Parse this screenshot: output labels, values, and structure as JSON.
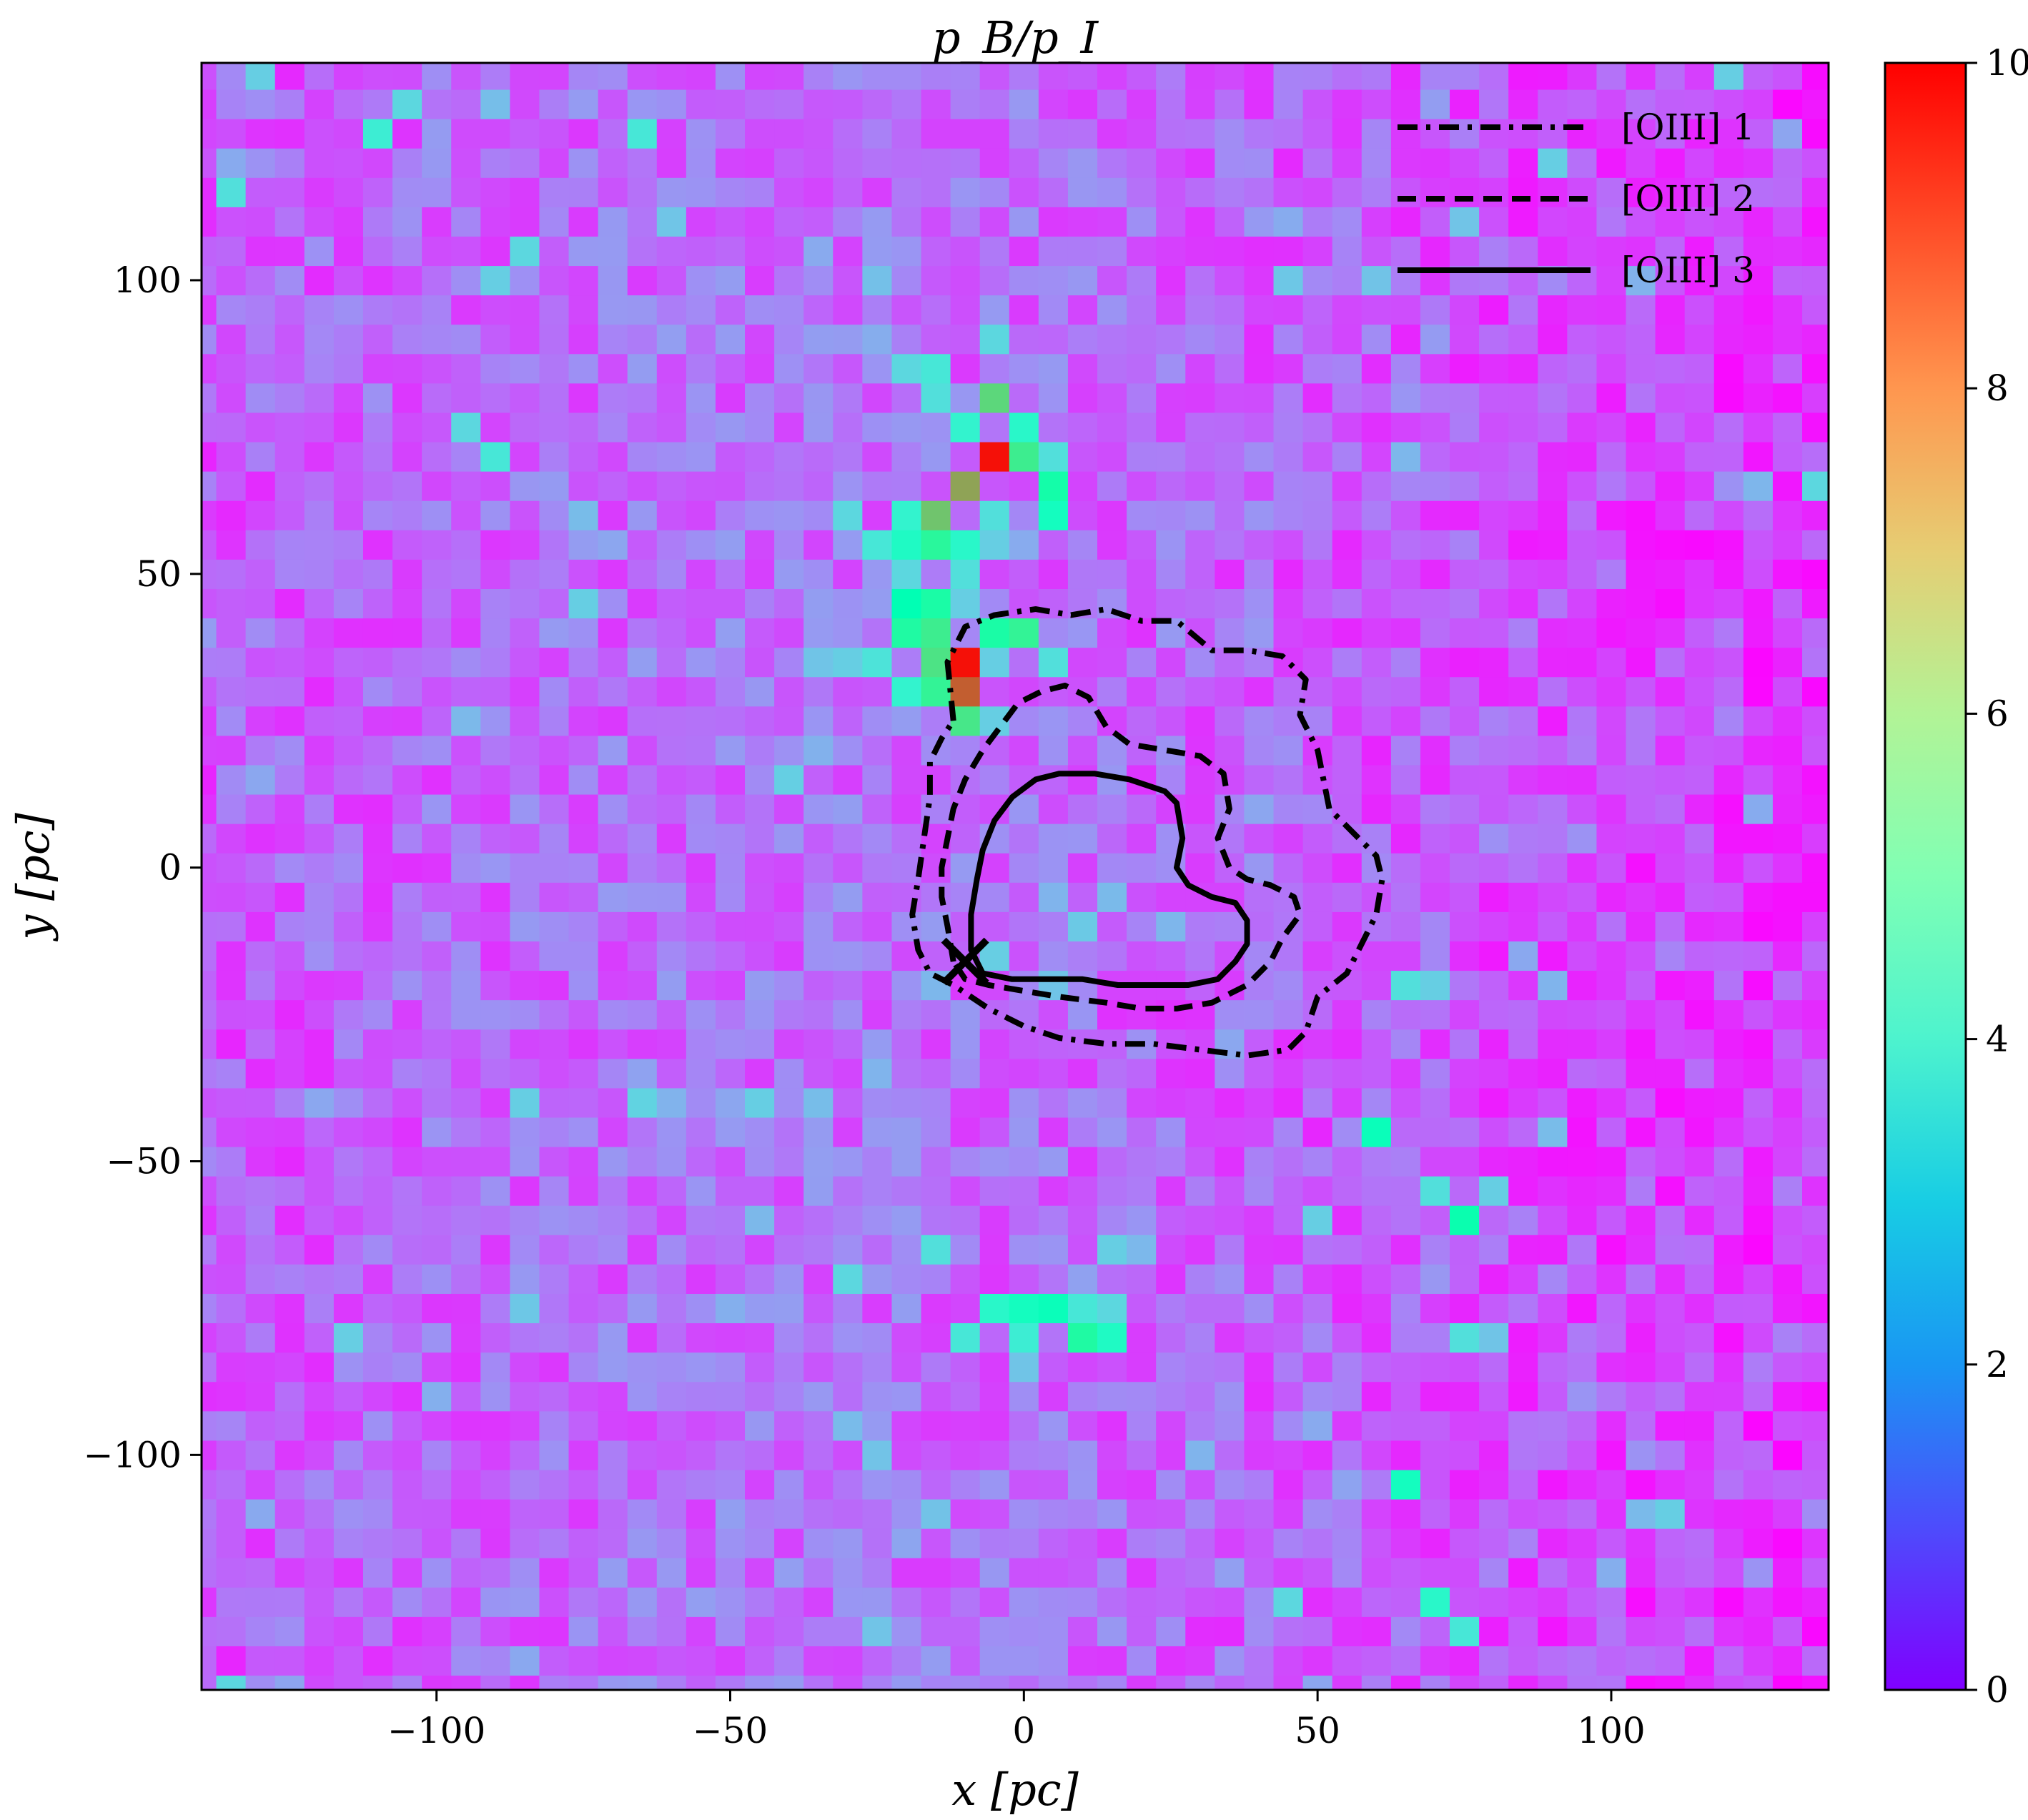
{
  "chart_data": {
    "type": "heatmap",
    "title": "p_B/p_I",
    "xlabel": "x [pc]",
    "ylabel": "y [pc]",
    "xlim": [
      -140,
      137
    ],
    "ylim": [
      -140,
      137
    ],
    "xticks": [
      -100,
      -50,
      0,
      50,
      100
    ],
    "yticks": [
      -100,
      -50,
      0,
      50,
      100
    ],
    "xtick_labels": [
      "−100",
      "−50",
      "0",
      "50",
      "100"
    ],
    "ytick_labels": [
      "−100",
      "−50",
      "0",
      "50",
      "100"
    ],
    "grid": false,
    "colormap": "rainbow",
    "colorbar": {
      "range": [
        0,
        10
      ],
      "ticks": [
        0,
        2,
        4,
        6,
        8,
        10
      ],
      "tick_labels": [
        "0",
        "2",
        "4",
        "6",
        "8",
        "10"
      ]
    },
    "pixel_size_pc": 5,
    "background_value": 1.0,
    "highlight_pixels": [
      {
        "x": -10,
        "y": 35,
        "v": 9.8
      },
      {
        "x": -10,
        "y": 30,
        "v": 8.8
      },
      {
        "x": -10,
        "y": 25,
        "v": 6.4
      },
      {
        "x": -15,
        "y": 30,
        "v": 6.0
      },
      {
        "x": -15,
        "y": 35,
        "v": 6.5
      },
      {
        "x": -15,
        "y": 40,
        "v": 6.2
      },
      {
        "x": -15,
        "y": 45,
        "v": 5.5
      },
      {
        "x": -20,
        "y": 45,
        "v": 5.0
      },
      {
        "x": -20,
        "y": 40,
        "v": 5.6
      },
      {
        "x": -20,
        "y": 30,
        "v": 4.0
      },
      {
        "x": -25,
        "y": 35,
        "v": 3.5
      },
      {
        "x": -5,
        "y": 40,
        "v": 5.5
      },
      {
        "x": -5,
        "y": 35,
        "v": 3.0
      },
      {
        "x": 0,
        "y": 40,
        "v": 6.0
      },
      {
        "x": 5,
        "y": 35,
        "v": 3.4
      },
      {
        "x": -10,
        "y": 45,
        "v": 3.0
      },
      {
        "x": -5,
        "y": 25,
        "v": 3.0
      },
      {
        "x": -5,
        "y": 70,
        "v": 9.8
      },
      {
        "x": -10,
        "y": 65,
        "v": 7.8
      },
      {
        "x": -15,
        "y": 60,
        "v": 7.2
      },
      {
        "x": -5,
        "y": 80,
        "v": 6.8
      },
      {
        "x": 0,
        "y": 70,
        "v": 6.2
      },
      {
        "x": 5,
        "y": 65,
        "v": 5.4
      },
      {
        "x": 5,
        "y": 60,
        "v": 4.6
      },
      {
        "x": -15,
        "y": 55,
        "v": 5.8
      },
      {
        "x": -10,
        "y": 55,
        "v": 4.2
      },
      {
        "x": -20,
        "y": 55,
        "v": 4.4
      },
      {
        "x": -20,
        "y": 60,
        "v": 4.0
      },
      {
        "x": -25,
        "y": 55,
        "v": 3.6
      },
      {
        "x": -10,
        "y": 75,
        "v": 4.0
      },
      {
        "x": 0,
        "y": 75,
        "v": 4.2
      },
      {
        "x": 5,
        "y": 70,
        "v": 3.4
      },
      {
        "x": -15,
        "y": 80,
        "v": 3.4
      },
      {
        "x": -15,
        "y": 85,
        "v": 3.6
      },
      {
        "x": -20,
        "y": 85,
        "v": 3.2
      },
      {
        "x": -5,
        "y": 90,
        "v": 3.2
      },
      {
        "x": -10,
        "y": 50,
        "v": 3.4
      },
      {
        "x": -30,
        "y": 60,
        "v": 3.2
      },
      {
        "x": -5,
        "y": 60,
        "v": 3.4
      },
      {
        "x": -5,
        "y": 55,
        "v": 3.0
      },
      {
        "x": -20,
        "y": 50,
        "v": 3.2
      },
      {
        "x": -30,
        "y": 35,
        "v": 3.0
      },
      {
        "x": -35,
        "y": 35,
        "v": 2.8
      },
      {
        "x": -5,
        "y": -75,
        "v": 4.2
      },
      {
        "x": 0,
        "y": -75,
        "v": 4.6
      },
      {
        "x": 5,
        "y": -75,
        "v": 4.8
      },
      {
        "x": 10,
        "y": -75,
        "v": 3.6
      },
      {
        "x": 10,
        "y": -80,
        "v": 5.6
      },
      {
        "x": 15,
        "y": -80,
        "v": 4.4
      },
      {
        "x": 0,
        "y": -80,
        "v": 3.8
      },
      {
        "x": -10,
        "y": -80,
        "v": 3.6
      },
      {
        "x": 0,
        "y": -85,
        "v": 2.8
      },
      {
        "x": 60,
        "y": -45,
        "v": 4.8
      },
      {
        "x": 75,
        "y": -60,
        "v": 5.2
      },
      {
        "x": 70,
        "y": -55,
        "v": 3.4
      },
      {
        "x": 80,
        "y": -55,
        "v": 3.0
      },
      {
        "x": 65,
        "y": -20,
        "v": 3.4
      },
      {
        "x": 70,
        "y": -20,
        "v": 3.0
      },
      {
        "x": 65,
        "y": -105,
        "v": 4.6
      },
      {
        "x": 75,
        "y": -80,
        "v": 3.4
      },
      {
        "x": 80,
        "y": -80,
        "v": 2.8
      },
      {
        "x": 70,
        "y": -125,
        "v": 4.2
      },
      {
        "x": 75,
        "y": -130,
        "v": 3.6
      },
      {
        "x": 110,
        "y": -110,
        "v": 3.0
      },
      {
        "x": 105,
        "y": -110,
        "v": 2.6
      },
      {
        "x": -110,
        "y": 125,
        "v": 3.8
      },
      {
        "x": -105,
        "y": 130,
        "v": 3.2
      },
      {
        "x": -85,
        "y": 105,
        "v": 3.2
      },
      {
        "x": -90,
        "y": 100,
        "v": 3.0
      },
      {
        "x": -95,
        "y": 75,
        "v": 3.2
      },
      {
        "x": -90,
        "y": 70,
        "v": 3.6
      },
      {
        "x": -65,
        "y": 125,
        "v": 3.6
      },
      {
        "x": -75,
        "y": 45,
        "v": 3.0
      },
      {
        "x": -130,
        "y": 135,
        "v": 3.0
      },
      {
        "x": -135,
        "y": 115,
        "v": 3.4
      },
      {
        "x": 120,
        "y": 135,
        "v": 3.0
      },
      {
        "x": 135,
        "y": 65,
        "v": 3.2
      },
      {
        "x": 90,
        "y": 120,
        "v": 3.0
      },
      {
        "x": -135,
        "y": -140,
        "v": 3.2
      },
      {
        "x": -30,
        "y": -70,
        "v": 3.2
      },
      {
        "x": -15,
        "y": -65,
        "v": 3.4
      },
      {
        "x": 15,
        "y": -65,
        "v": 3.0
      },
      {
        "x": 5,
        "y": -20,
        "v": 2.8
      },
      {
        "x": 10,
        "y": -10,
        "v": 2.9
      },
      {
        "x": 15,
        "y": -5,
        "v": 2.6
      },
      {
        "x": 5,
        "y": -5,
        "v": 2.5
      },
      {
        "x": -45,
        "y": -40,
        "v": 3.0
      },
      {
        "x": 50,
        "y": -60,
        "v": 3.0
      },
      {
        "x": 45,
        "y": -125,
        "v": 3.2
      },
      {
        "x": -85,
        "y": -40,
        "v": 3.0
      }
    ],
    "contours": [
      {
        "name": "[OIII] 1",
        "style": "dashdot",
        "points": [
          [
            -12,
            25
          ],
          [
            -13,
            35
          ],
          [
            -10,
            41
          ],
          [
            -5,
            43
          ],
          [
            2,
            44
          ],
          [
            8,
            43
          ],
          [
            14,
            44
          ],
          [
            20,
            42
          ],
          [
            26,
            42
          ],
          [
            32,
            37
          ],
          [
            38,
            37
          ],
          [
            44,
            36
          ],
          [
            48,
            32
          ],
          [
            47,
            26
          ],
          [
            50,
            20
          ],
          [
            52,
            10
          ],
          [
            56,
            6
          ],
          [
            60,
            2
          ],
          [
            61,
            -2
          ],
          [
            60,
            -8
          ],
          [
            58,
            -12
          ],
          [
            55,
            -18
          ],
          [
            50,
            -22
          ],
          [
            48,
            -28
          ],
          [
            45,
            -31
          ],
          [
            38,
            -32
          ],
          [
            30,
            -31
          ],
          [
            22,
            -30
          ],
          [
            14,
            -30
          ],
          [
            6,
            -29
          ],
          [
            0,
            -27
          ],
          [
            -6,
            -24
          ],
          [
            -12,
            -20
          ],
          [
            -16,
            -18
          ],
          [
            -18,
            -14
          ],
          [
            -19,
            -8
          ],
          [
            -18,
            -2
          ],
          [
            -17,
            5
          ],
          [
            -16,
            12
          ],
          [
            -16,
            18
          ],
          [
            -14,
            22
          ],
          [
            -12,
            25
          ]
        ]
      },
      {
        "name": "[OIII] 2",
        "style": "dashed",
        "points": [
          [
            -12,
            -16
          ],
          [
            -13,
            -10
          ],
          [
            -14,
            -5
          ],
          [
            -14,
            0
          ],
          [
            -13,
            5
          ],
          [
            -12,
            10
          ],
          [
            -10,
            15
          ],
          [
            -7,
            20
          ],
          [
            -4,
            24
          ],
          [
            -1,
            28
          ],
          [
            3,
            30
          ],
          [
            7,
            31
          ],
          [
            11,
            29
          ],
          [
            14,
            24
          ],
          [
            18,
            21
          ],
          [
            24,
            20
          ],
          [
            30,
            19
          ],
          [
            34,
            16
          ],
          [
            35,
            10
          ],
          [
            33,
            5
          ],
          [
            35,
            0
          ],
          [
            38,
            -2
          ],
          [
            42,
            -3
          ],
          [
            46,
            -5
          ],
          [
            47,
            -8
          ],
          [
            44,
            -12
          ],
          [
            42,
            -16
          ],
          [
            38,
            -20
          ],
          [
            32,
            -23
          ],
          [
            26,
            -24
          ],
          [
            20,
            -24
          ],
          [
            14,
            -23
          ],
          [
            6,
            -22
          ],
          [
            0,
            -21
          ],
          [
            -6,
            -20
          ],
          [
            -10,
            -19
          ],
          [
            -12,
            -16
          ]
        ]
      },
      {
        "name": "[OIII] 3",
        "style": "solid",
        "points": [
          [
            -7,
            -18
          ],
          [
            -9,
            -14
          ],
          [
            -9,
            -8
          ],
          [
            -8,
            -2
          ],
          [
            -7,
            3
          ],
          [
            -5,
            8
          ],
          [
            -2,
            12
          ],
          [
            2,
            15
          ],
          [
            6,
            16
          ],
          [
            12,
            16
          ],
          [
            18,
            15
          ],
          [
            24,
            13
          ],
          [
            26,
            11
          ],
          [
            27,
            5
          ],
          [
            26,
            0
          ],
          [
            28,
            -3
          ],
          [
            32,
            -5
          ],
          [
            36,
            -6
          ],
          [
            38,
            -9
          ],
          [
            38,
            -13
          ],
          [
            36,
            -16
          ],
          [
            33,
            -19
          ],
          [
            28,
            -20
          ],
          [
            22,
            -20
          ],
          [
            16,
            -20
          ],
          [
            10,
            -19
          ],
          [
            4,
            -19
          ],
          [
            -2,
            -19
          ],
          [
            -7,
            -18
          ]
        ]
      }
    ],
    "marker": {
      "type": "cross",
      "x": -10,
      "y": -16
    },
    "legend": {
      "position": "top-right",
      "entries": [
        {
          "label": "[OIII] 1",
          "style": "dashdot"
        },
        {
          "label": "[OIII] 2",
          "style": "dashed"
        },
        {
          "label": "[OIII] 3",
          "style": "solid"
        }
      ]
    }
  }
}
